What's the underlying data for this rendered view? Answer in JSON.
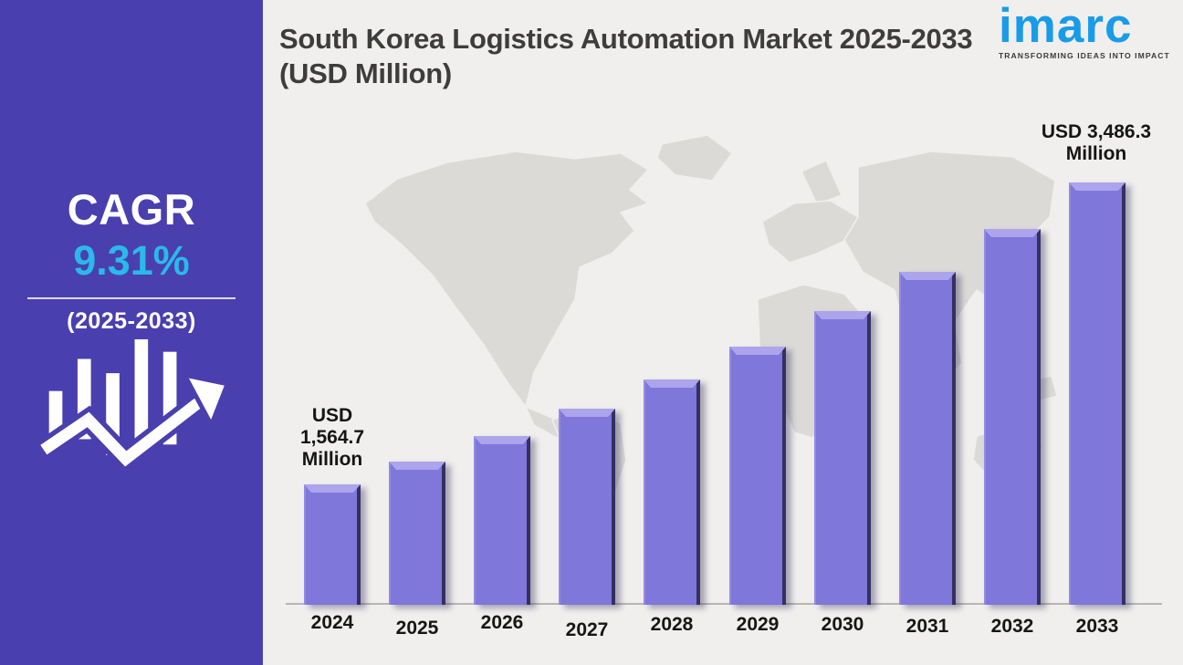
{
  "sidebar": {
    "cagr_label": "CAGR",
    "cagr_value": "9.31%",
    "cagr_period": "(2025-2033)",
    "accent_color": "#2bb9ea",
    "background_color": "#4a3fae"
  },
  "header": {
    "title": "South Korea Logistics Automation Market 2025-2033 (USD Million)"
  },
  "logo": {
    "brand": "imarc",
    "tagline": "TRANSFORMING IDEAS INTO IMPACT",
    "brand_color": "#199ce8"
  },
  "chart_data": {
    "type": "bar",
    "title": "South Korea Logistics Automation Market 2025-2033 (USD Million)",
    "categories": [
      "2024",
      "2025",
      "2026",
      "2027",
      "2028",
      "2029",
      "2030",
      "2031",
      "2032",
      "2033"
    ],
    "values": [
      1564.7,
      1710.4,
      1869.7,
      2043.8,
      2234.0,
      2441.9,
      2669.2,
      2917.7,
      3189.3,
      3486.3
    ],
    "unit": "USD Million",
    "bar_color": "#7f77d9",
    "ylim": [
      800,
      3600
    ],
    "grid": false,
    "legend": false,
    "annotations": [
      {
        "category": "2024",
        "text": "USD 1,564.7 Million"
      },
      {
        "category": "2033",
        "text": "USD 3,486.3 Million"
      }
    ],
    "first_label_lines": [
      "USD",
      "1,564.7",
      "Million"
    ],
    "last_label_lines": [
      "USD 3,486.3",
      "Million"
    ]
  }
}
